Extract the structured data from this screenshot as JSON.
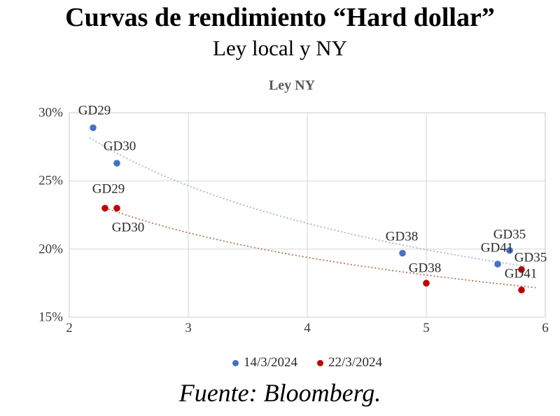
{
  "page": {
    "title": "Curvas de rendimiento “Hard dollar”",
    "subtitle": "Ley local y NY",
    "source": "Fuente: Bloomberg."
  },
  "chart_data": {
    "type": "scatter",
    "title": "Ley NY",
    "xlabel": "",
    "ylabel": "",
    "xlim": [
      2,
      6
    ],
    "ylim": [
      15,
      30
    ],
    "grid": true,
    "grid_color": "#d6d6d6",
    "legend_position": "bottom",
    "x_ticks": [
      {
        "value": 2,
        "label": "2"
      },
      {
        "value": 3,
        "label": "3"
      },
      {
        "value": 4,
        "label": "4"
      },
      {
        "value": 5,
        "label": "5"
      },
      {
        "value": 6,
        "label": "6"
      }
    ],
    "y_ticks": [
      {
        "value": 15,
        "label": "15%"
      },
      {
        "value": 20,
        "label": "20%"
      },
      {
        "value": 25,
        "label": "25%"
      },
      {
        "value": 30,
        "label": "30%"
      }
    ],
    "series": [
      {
        "name": "14/3/2024",
        "color": "#4472c4",
        "points": [
          {
            "label": "GD29",
            "x": 2.2,
            "y": 28.9,
            "label_offset": [
              2,
              -24
            ]
          },
          {
            "label": "GD30",
            "x": 2.4,
            "y": 26.3,
            "label_offset": [
              4,
              -24
            ]
          },
          {
            "label": "GD38",
            "x": 4.8,
            "y": 19.7,
            "label_offset": [
              -1,
              -24
            ]
          },
          {
            "label": "GD35",
            "x": 5.7,
            "y": 19.9,
            "label_offset": [
              0,
              -23
            ]
          },
          {
            "label": "GD41",
            "x": 5.6,
            "y": 18.9,
            "label_offset": [
              -1,
              -23
            ]
          }
        ],
        "trendline": {
          "fit": "power",
          "a": 38.8,
          "b": -0.413,
          "x_start": 2.17,
          "x_end": 5.83,
          "color": "#9bb3d8"
        }
      },
      {
        "name": "22/3/2024",
        "color": "#c00000",
        "points": [
          {
            "label": "GD29",
            "x": 2.3,
            "y": 23.0,
            "label_offset": [
              5,
              -27
            ]
          },
          {
            "label": "GD30",
            "x": 2.4,
            "y": 23.0,
            "label_offset": [
              16,
              28
            ]
          },
          {
            "label": "GD38",
            "x": 5.0,
            "y": 17.5,
            "label_offset": [
              -2,
              -21
            ]
          },
          {
            "label": "GD35",
            "x": 5.8,
            "y": 18.5,
            "label_offset": [
              13,
              -17
            ]
          },
          {
            "label": "GD41",
            "x": 5.8,
            "y": 17.0,
            "label_offset": [
              -1,
              -23
            ]
          }
        ],
        "trendline": {
          "fit": "power",
          "a": 29.8,
          "b": -0.31,
          "x_start": 2.33,
          "x_end": 5.92,
          "color": "#ab7155"
        }
      }
    ]
  }
}
